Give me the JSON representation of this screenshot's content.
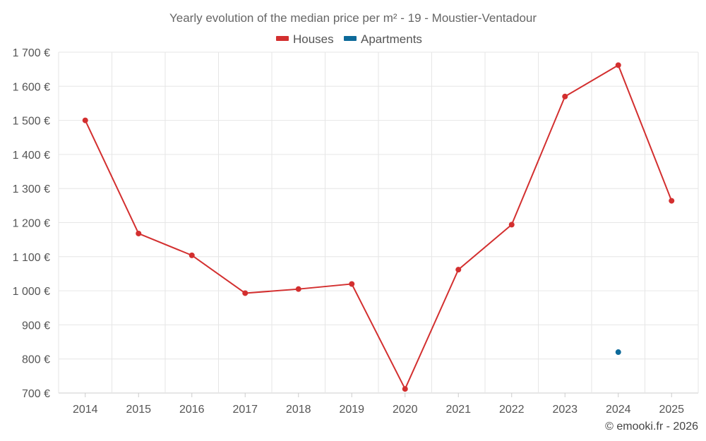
{
  "chart_data": {
    "type": "line",
    "title": "Yearly evolution of the median price per m² - 19 - Moustier-Ventadour",
    "categories": [
      "2014",
      "2015",
      "2016",
      "2017",
      "2018",
      "2019",
      "2020",
      "2021",
      "2022",
      "2023",
      "2024",
      "2025"
    ],
    "series": [
      {
        "name": "Houses",
        "color": "#d32f2f",
        "values": [
          1500,
          1168,
          1104,
          993,
          1005,
          1020,
          712,
          1062,
          1194,
          1570,
          1662,
          1264
        ]
      },
      {
        "name": "Apartments",
        "color": "#0d6a9a",
        "values": [
          null,
          null,
          null,
          null,
          null,
          null,
          null,
          null,
          null,
          null,
          820,
          null
        ]
      }
    ],
    "ylim": [
      700,
      1700
    ],
    "yticks": [
      700,
      800,
      900,
      1000,
      1100,
      1200,
      1300,
      1400,
      1500,
      1600,
      1700
    ],
    "ytick_labels": [
      "700 €",
      "800 €",
      "900 €",
      "1 000 €",
      "1 100 €",
      "1 200 €",
      "1 300 €",
      "1 400 €",
      "1 500 €",
      "1 600 €",
      "1 700 €"
    ],
    "xlabel": "",
    "ylabel": "",
    "grid": true,
    "legend_position": "top-center"
  },
  "credit": "© emooki.fr - 2026"
}
